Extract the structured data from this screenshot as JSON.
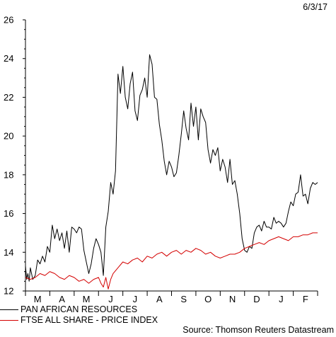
{
  "header": {
    "date": "6/3/17"
  },
  "footer": {
    "source": "Source: Thomson Reuters Datastream"
  },
  "colors": {
    "series_1": "#000000",
    "series_2": "#d40000",
    "axis": "#000000"
  },
  "chart_data": {
    "type": "line",
    "ylim": [
      12,
      26
    ],
    "xlim": [
      0,
      12
    ],
    "y_ticks": [
      12,
      14,
      16,
      18,
      20,
      22,
      24,
      26
    ],
    "x_tick_labels": [
      "M",
      "A",
      "M",
      "J",
      "J",
      "A",
      "S",
      "O",
      "N",
      "D",
      "J",
      "F"
    ],
    "x_tick_positions": [
      0.5,
      1.5,
      2.5,
      3.5,
      4.5,
      5.5,
      6.5,
      7.5,
      8.5,
      9.5,
      10.5,
      11.5
    ],
    "grid": false,
    "legend_position": "bottom-left",
    "series": [
      {
        "name": "PAN AFRICAN RESOURCES",
        "color": "#000000",
        "x": [
          0.0,
          0.05,
          0.1,
          0.15,
          0.2,
          0.3,
          0.4,
          0.5,
          0.6,
          0.7,
          0.8,
          0.9,
          1.0,
          1.1,
          1.2,
          1.3,
          1.4,
          1.5,
          1.6,
          1.7,
          1.8,
          1.9,
          2.0,
          2.1,
          2.2,
          2.3,
          2.4,
          2.5,
          2.6,
          2.7,
          2.8,
          2.9,
          3.0,
          3.1,
          3.2,
          3.3,
          3.4,
          3.5,
          3.6,
          3.7,
          3.8,
          3.9,
          4.0,
          4.1,
          4.2,
          4.3,
          4.4,
          4.5,
          4.6,
          4.7,
          4.8,
          4.9,
          5.0,
          5.1,
          5.2,
          5.3,
          5.4,
          5.5,
          5.6,
          5.7,
          5.8,
          5.9,
          6.0,
          6.1,
          6.2,
          6.3,
          6.4,
          6.5,
          6.6,
          6.7,
          6.8,
          6.9,
          7.0,
          7.1,
          7.2,
          7.3,
          7.4,
          7.5,
          7.6,
          7.7,
          7.8,
          7.9,
          8.0,
          8.1,
          8.2,
          8.3,
          8.4,
          8.5,
          8.6,
          8.7,
          8.8,
          8.9,
          9.0,
          9.1,
          9.2,
          9.3,
          9.4,
          9.5,
          9.6,
          9.7,
          9.8,
          9.9,
          10.0,
          10.1,
          10.2,
          10.3,
          10.4,
          10.5,
          10.6,
          10.7,
          10.8,
          10.9,
          11.0,
          11.1,
          11.2,
          11.3,
          11.4,
          11.5,
          11.6,
          11.7,
          11.8,
          11.9,
          12.0
        ],
        "values": [
          13.3,
          12.6,
          12.9,
          12.5,
          13.2,
          12.6,
          12.8,
          13.6,
          13.4,
          13.8,
          13.5,
          14.3,
          14.0,
          15.4,
          14.7,
          15.2,
          14.6,
          15.0,
          14.2,
          15.1,
          14.0,
          15.3,
          15.2,
          15.0,
          15.3,
          15.2,
          14.1,
          13.5,
          12.9,
          13.4,
          14.2,
          14.7,
          14.4,
          14.0,
          12.8,
          15.3,
          16.1,
          17.6,
          17.0,
          18.2,
          23.2,
          22.2,
          23.6,
          22.0,
          21.4,
          22.7,
          23.3,
          21.3,
          20.8,
          22.1,
          22.4,
          23.0,
          22.0,
          24.2,
          23.7,
          22.0,
          21.9,
          20.6,
          19.8,
          18.7,
          18.0,
          18.7,
          18.4,
          17.9,
          18.1,
          19.0,
          20.1,
          21.3,
          20.4,
          19.8,
          21.7,
          20.5,
          21.5,
          19.8,
          21.4,
          21.0,
          20.7,
          19.3,
          18.6,
          19.3,
          19.0,
          19.4,
          18.2,
          18.8,
          18.4,
          17.6,
          18.8,
          17.5,
          17.7,
          17.0,
          16.0,
          14.7,
          14.1,
          14.0,
          14.3,
          14.2,
          15.0,
          15.3,
          15.4,
          15.1,
          15.6,
          15.3,
          15.3,
          15.2,
          15.8,
          15.5,
          15.6,
          15.5,
          15.3,
          15.5,
          16.1,
          16.6,
          16.4,
          17.0,
          17.1,
          18.0,
          16.9,
          17.0,
          16.5,
          17.3,
          17.6,
          17.5,
          17.6
        ]
      },
      {
        "name": "FTSE ALL SHARE - PRICE INDEX",
        "color": "#d40000",
        "x": [
          0.0,
          0.2,
          0.4,
          0.6,
          0.8,
          1.0,
          1.2,
          1.4,
          1.6,
          1.8,
          2.0,
          2.2,
          2.4,
          2.6,
          2.8,
          3.0,
          3.1,
          3.2,
          3.3,
          3.4,
          3.5,
          3.6,
          3.8,
          4.0,
          4.2,
          4.4,
          4.6,
          4.8,
          5.0,
          5.2,
          5.4,
          5.6,
          5.8,
          6.0,
          6.2,
          6.4,
          6.6,
          6.8,
          7.0,
          7.2,
          7.4,
          7.6,
          7.8,
          8.0,
          8.2,
          8.4,
          8.6,
          8.8,
          9.0,
          9.2,
          9.4,
          9.6,
          9.8,
          10.0,
          10.2,
          10.4,
          10.6,
          10.8,
          11.0,
          11.2,
          11.4,
          11.6,
          11.8,
          12.0
        ],
        "values": [
          12.7,
          12.6,
          12.7,
          12.9,
          12.8,
          13.0,
          12.9,
          12.7,
          12.6,
          12.8,
          12.7,
          12.5,
          12.6,
          12.4,
          12.6,
          12.7,
          12.4,
          12.2,
          12.7,
          12.1,
          12.6,
          12.9,
          13.2,
          13.5,
          13.4,
          13.6,
          13.7,
          13.5,
          13.8,
          13.7,
          13.9,
          14.0,
          13.8,
          14.0,
          14.1,
          13.9,
          14.1,
          14.0,
          14.2,
          14.1,
          13.9,
          14.0,
          13.8,
          13.7,
          13.8,
          13.9,
          13.9,
          14.0,
          14.2,
          14.3,
          14.4,
          14.5,
          14.4,
          14.6,
          14.7,
          14.8,
          14.7,
          14.6,
          14.8,
          14.8,
          14.9,
          14.9,
          15.0,
          15.0
        ]
      }
    ]
  }
}
